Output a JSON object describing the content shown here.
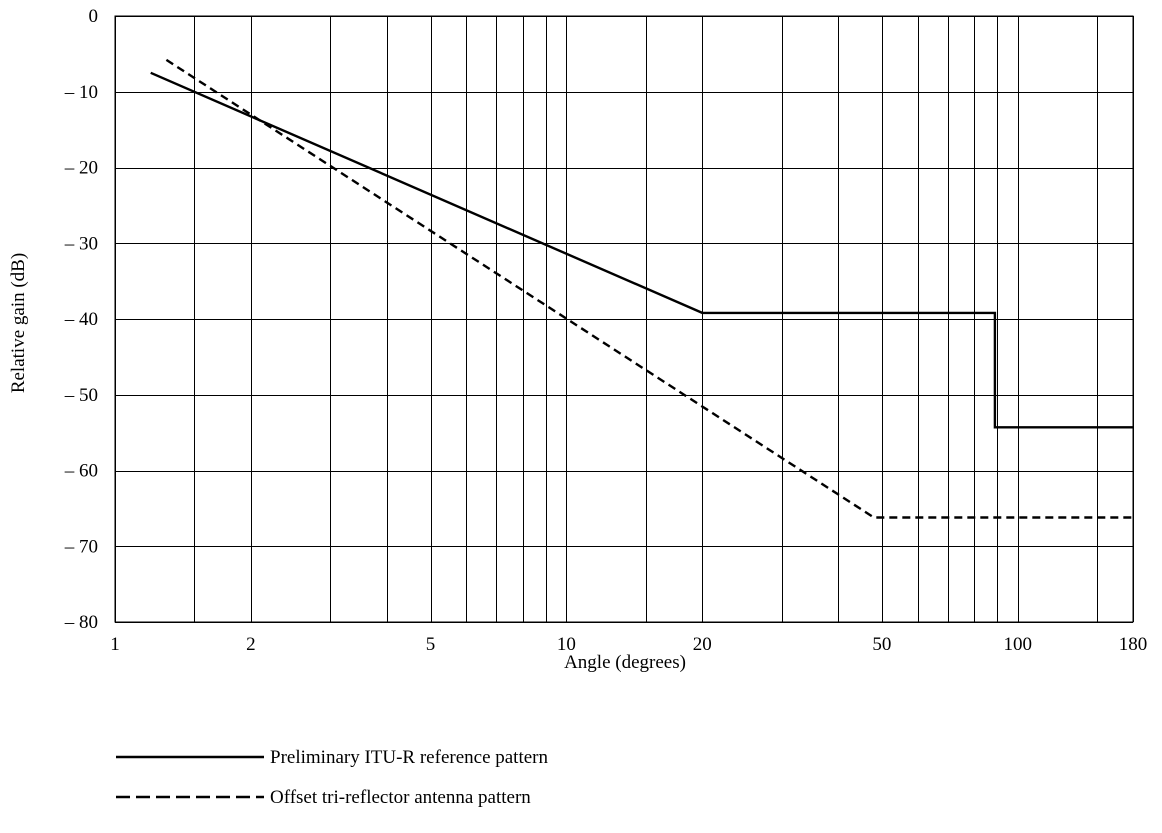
{
  "chart_data": {
    "type": "line",
    "title": "",
    "xlabel": "Angle (degrees)",
    "ylabel": "Relative gain (dB)",
    "x_scale": "log",
    "xlim": [
      1,
      180
    ],
    "ylim": [
      -80,
      0
    ],
    "grid": true,
    "legend_position": "bottom-left",
    "x_gridlines": [
      1,
      1.5,
      2,
      3,
      4,
      5,
      6,
      7,
      8,
      9,
      10,
      15,
      20,
      30,
      40,
      50,
      60,
      70,
      80,
      90,
      100,
      150,
      180
    ],
    "x_ticks": [
      {
        "value": 1,
        "label": "1"
      },
      {
        "value": 2,
        "label": "2"
      },
      {
        "value": 5,
        "label": "5"
      },
      {
        "value": 10,
        "label": "10"
      },
      {
        "value": 20,
        "label": "20"
      },
      {
        "value": 50,
        "label": "50"
      },
      {
        "value": 100,
        "label": "100"
      },
      {
        "value": 180,
        "label": "180"
      }
    ],
    "y_ticks": [
      {
        "value": 0,
        "label": "0"
      },
      {
        "value": -10,
        "label": "– 10"
      },
      {
        "value": -20,
        "label": "– 20"
      },
      {
        "value": -30,
        "label": "– 30"
      },
      {
        "value": -40,
        "label": "– 40"
      },
      {
        "value": -50,
        "label": "– 50"
      },
      {
        "value": -60,
        "label": "– 60"
      },
      {
        "value": -70,
        "label": "– 70"
      },
      {
        "value": -80,
        "label": "– 80"
      }
    ],
    "series": [
      {
        "name": "Preliminary ITU-R reference pattern",
        "style": "solid",
        "color": "#000000",
        "points": [
          [
            1.2,
            -7.5
          ],
          [
            20,
            -39.2
          ],
          [
            89,
            -39.2
          ],
          [
            89,
            -54.3
          ],
          [
            180,
            -54.3
          ]
        ]
      },
      {
        "name": "Offset tri-reflector antenna pattern",
        "style": "dashed",
        "color": "#000000",
        "points": [
          [
            1.3,
            -5.8
          ],
          [
            48,
            -66.2
          ],
          [
            180,
            -66.2
          ]
        ]
      }
    ]
  }
}
